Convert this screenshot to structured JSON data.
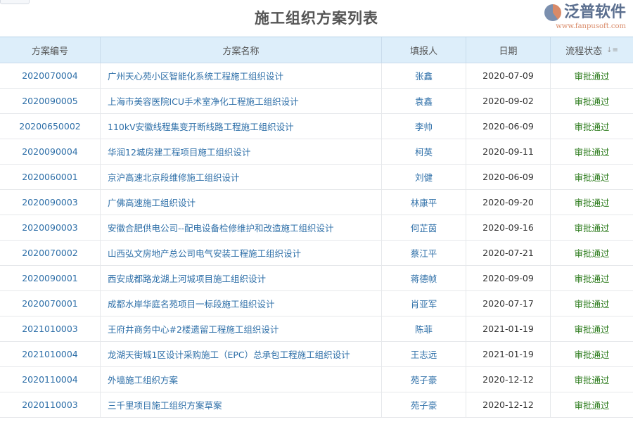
{
  "title": "施工组织方案列表",
  "columns": [
    "方案编号",
    "方案名称",
    "填报人",
    "日期",
    "流程状态"
  ],
  "sort_icon": "sort-icon",
  "rows": [
    {
      "id": "2020070004",
      "name": "广州天心苑小区智能化系统工程施工组织设计",
      "reporter": "张鑫",
      "date": "2020-07-09",
      "status": "审批通过"
    },
    {
      "id": "2020090005",
      "name": "上海市美容医院ICU手术室净化工程施工组织设计",
      "reporter": "袁鑫",
      "date": "2020-09-02",
      "status": "审批通过"
    },
    {
      "id": "20200650002",
      "name": "110kV安徽线程集变开断线路工程施工组织设计",
      "reporter": "李帅",
      "date": "2020-06-09",
      "status": "审批通过"
    },
    {
      "id": "2020090004",
      "name": "华润12城房建工程项目施工组织设计",
      "reporter": "柯英",
      "date": "2020-09-11",
      "status": "审批通过"
    },
    {
      "id": "2020060001",
      "name": "京沪高速北京段维修施工组织设计",
      "reporter": "刘健",
      "date": "2020-06-09",
      "status": "审批通过"
    },
    {
      "id": "2020090003",
      "name": "广佛高速施工组织设计",
      "reporter": "林康平",
      "date": "2020-09-20",
      "status": "审批通过"
    },
    {
      "id": "2020090003",
      "name": "安徽合肥供电公司--配电设备检修维护和改造施工组织设计",
      "reporter": "何芷茵",
      "date": "2020-09-16",
      "status": "审批通过"
    },
    {
      "id": "2020070002",
      "name": "山西弘文房地产总公司电气安装工程施工组织设计",
      "reporter": "蔡江平",
      "date": "2020-07-21",
      "status": "审批通过"
    },
    {
      "id": "2020090001",
      "name": "西安成都路龙湖上河城项目施工组织设计",
      "reporter": "蒋德帧",
      "date": "2020-09-09",
      "status": "审批通过"
    },
    {
      "id": "2020070001",
      "name": "成都水岸华庭名苑项目一标段施工组织设计",
      "reporter": "肖亚军",
      "date": "2020-07-17",
      "status": "审批通过"
    },
    {
      "id": "2021010003",
      "name": "王府井商务中心#2楼遗留工程施工组织设计",
      "reporter": "陈菲",
      "date": "2021-01-19",
      "status": "审批通过"
    },
    {
      "id": "2021010004",
      "name": "龙湖天街城1区设计采购施工（EPC）总承包工程施工组织设计",
      "reporter": "王志远",
      "date": "2021-01-19",
      "status": "审批通过"
    },
    {
      "id": "2020110004",
      "name": "外墙施工组织方案",
      "reporter": "苑子豪",
      "date": "2020-12-12",
      "status": "审批通过"
    },
    {
      "id": "2020110003",
      "name": "三千里项目施工组织方案草案",
      "reporter": "苑子豪",
      "date": "2020-12-12",
      "status": "审批通过"
    }
  ],
  "watermark": {
    "name": "泛普软件",
    "url": "www.fanpusoft.com"
  },
  "colors": {
    "header_bg": "#ddeefa",
    "link": "#2e6fa8",
    "status_approved": "#2a7a1a"
  }
}
